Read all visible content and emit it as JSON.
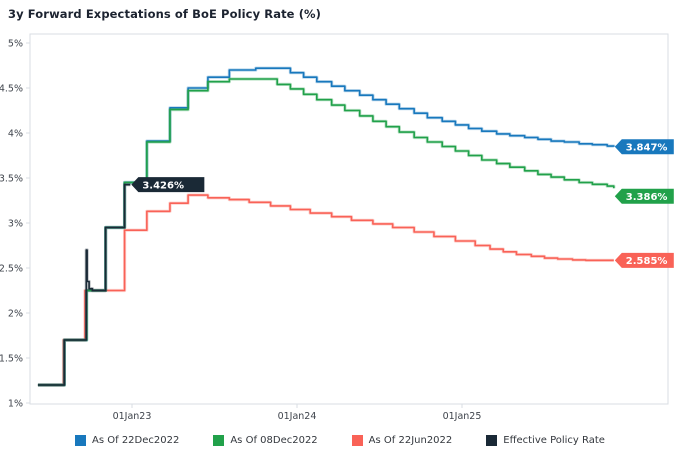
{
  "title": "3y Forward Expectations of BoE Policy Rate (%)",
  "colors": {
    "blue": "#1878bd",
    "green": "#21a14a",
    "red": "#f96257",
    "navy": "#1a2936",
    "axis_line": "#d9dde3",
    "tick_text": "#3f444c",
    "title_text": "#1c2330",
    "background": "#ffffff"
  },
  "chart_data": {
    "type": "line",
    "step": true,
    "title": "3y Forward Expectations of BoE Policy Rate (%)",
    "xlabel": "",
    "ylabel": "",
    "ylim": [
      1,
      5
    ],
    "xlim": [
      2022.38,
      2026.25
    ],
    "grid": false,
    "legend_position": "bottom",
    "y_ticks": [
      {
        "v": 5.0,
        "label": "5%"
      },
      {
        "v": 4.5,
        "label": "4.5%"
      },
      {
        "v": 4.0,
        "label": "4%"
      },
      {
        "v": 3.5,
        "label": "3.5%"
      },
      {
        "v": 3.0,
        "label": "3%"
      },
      {
        "v": 2.5,
        "label": "2.5%"
      },
      {
        "v": 2.0,
        "label": "2%"
      },
      {
        "v": 1.5,
        "label": "1.5%"
      },
      {
        "v": 1.0,
        "label": "1%"
      }
    ],
    "x_ticks": [
      {
        "t": 2023.0,
        "label": "01Jan23"
      },
      {
        "t": 2024.0,
        "label": "01Jan24"
      },
      {
        "t": 2025.0,
        "label": "01Jan25"
      }
    ],
    "series": [
      {
        "name": "As Of 22Dec2022",
        "color": "#1878bd",
        "end_label": "3.847%",
        "label_dy": 0,
        "points": [
          [
            2022.43,
            1.2
          ],
          [
            2022.59,
            1.7
          ],
          [
            2022.725,
            2.25
          ],
          [
            2022.84,
            2.95
          ],
          [
            2022.955,
            3.45
          ],
          [
            2023.09,
            3.91
          ],
          [
            2023.23,
            4.28
          ],
          [
            2023.34,
            4.5
          ],
          [
            2023.46,
            4.62
          ],
          [
            2023.59,
            4.7
          ],
          [
            2023.75,
            4.72
          ],
          [
            2023.96,
            4.67
          ],
          [
            2024.04,
            4.62
          ],
          [
            2024.12,
            4.57
          ],
          [
            2024.21,
            4.52
          ],
          [
            2024.29,
            4.47
          ],
          [
            2024.38,
            4.42
          ],
          [
            2024.46,
            4.37
          ],
          [
            2024.54,
            4.32
          ],
          [
            2024.62,
            4.27
          ],
          [
            2024.71,
            4.22
          ],
          [
            2024.79,
            4.17
          ],
          [
            2024.88,
            4.13
          ],
          [
            2024.96,
            4.09
          ],
          [
            2025.04,
            4.05
          ],
          [
            2025.12,
            4.02
          ],
          [
            2025.21,
            3.99
          ],
          [
            2025.29,
            3.97
          ],
          [
            2025.38,
            3.95
          ],
          [
            2025.46,
            3.93
          ],
          [
            2025.54,
            3.91
          ],
          [
            2025.62,
            3.9
          ],
          [
            2025.71,
            3.88
          ],
          [
            2025.79,
            3.87
          ],
          [
            2025.88,
            3.855
          ],
          [
            2025.92,
            3.847
          ]
        ]
      },
      {
        "name": "As Of 08Dec2022",
        "color": "#21a14a",
        "end_label": "3.386%",
        "label_dy": 8,
        "points": [
          [
            2022.43,
            1.2
          ],
          [
            2022.59,
            1.7
          ],
          [
            2022.725,
            2.25
          ],
          [
            2022.84,
            2.95
          ],
          [
            2022.955,
            3.45
          ],
          [
            2023.09,
            3.9
          ],
          [
            2023.23,
            4.26
          ],
          [
            2023.34,
            4.47
          ],
          [
            2023.46,
            4.57
          ],
          [
            2023.59,
            4.6
          ],
          [
            2023.88,
            4.54
          ],
          [
            2023.96,
            4.49
          ],
          [
            2024.04,
            4.43
          ],
          [
            2024.12,
            4.37
          ],
          [
            2024.21,
            4.31
          ],
          [
            2024.29,
            4.25
          ],
          [
            2024.38,
            4.19
          ],
          [
            2024.46,
            4.13
          ],
          [
            2024.54,
            4.07
          ],
          [
            2024.62,
            4.01
          ],
          [
            2024.71,
            3.95
          ],
          [
            2024.79,
            3.9
          ],
          [
            2024.88,
            3.85
          ],
          [
            2024.96,
            3.8
          ],
          [
            2025.04,
            3.75
          ],
          [
            2025.12,
            3.7
          ],
          [
            2025.21,
            3.66
          ],
          [
            2025.29,
            3.62
          ],
          [
            2025.38,
            3.58
          ],
          [
            2025.46,
            3.54
          ],
          [
            2025.54,
            3.51
          ],
          [
            2025.62,
            3.48
          ],
          [
            2025.71,
            3.45
          ],
          [
            2025.79,
            3.43
          ],
          [
            2025.88,
            3.41
          ],
          [
            2025.92,
            3.386
          ]
        ]
      },
      {
        "name": "As Of 22Jun2022",
        "color": "#f96257",
        "end_label": "2.585%",
        "label_dy": 0,
        "points": [
          [
            2022.43,
            1.2
          ],
          [
            2022.585,
            1.7
          ],
          [
            2022.715,
            2.25
          ],
          [
            2022.955,
            2.92
          ],
          [
            2023.09,
            3.13
          ],
          [
            2023.23,
            3.22
          ],
          [
            2023.34,
            3.31
          ],
          [
            2023.46,
            3.28
          ],
          [
            2023.59,
            3.26
          ],
          [
            2023.71,
            3.23
          ],
          [
            2023.84,
            3.19
          ],
          [
            2023.96,
            3.15
          ],
          [
            2024.08,
            3.11
          ],
          [
            2024.21,
            3.07
          ],
          [
            2024.33,
            3.03
          ],
          [
            2024.46,
            2.99
          ],
          [
            2024.58,
            2.95
          ],
          [
            2024.71,
            2.9
          ],
          [
            2024.83,
            2.85
          ],
          [
            2024.96,
            2.8
          ],
          [
            2025.08,
            2.75
          ],
          [
            2025.17,
            2.71
          ],
          [
            2025.25,
            2.68
          ],
          [
            2025.33,
            2.65
          ],
          [
            2025.42,
            2.63
          ],
          [
            2025.5,
            2.61
          ],
          [
            2025.58,
            2.6
          ],
          [
            2025.67,
            2.59
          ],
          [
            2025.75,
            2.585
          ],
          [
            2025.92,
            2.585
          ]
        ]
      },
      {
        "name": "Effective Policy Rate",
        "color": "#1a2936",
        "end_label": "3.426%",
        "label_dy": 0,
        "points": [
          [
            2022.43,
            1.2
          ],
          [
            2022.59,
            1.7
          ],
          [
            2022.723,
            2.7
          ],
          [
            2022.728,
            2.35
          ],
          [
            2022.74,
            2.27
          ],
          [
            2022.76,
            2.25
          ],
          [
            2022.84,
            2.95
          ],
          [
            2022.955,
            3.426
          ],
          [
            2022.99,
            3.426
          ]
        ]
      }
    ]
  }
}
